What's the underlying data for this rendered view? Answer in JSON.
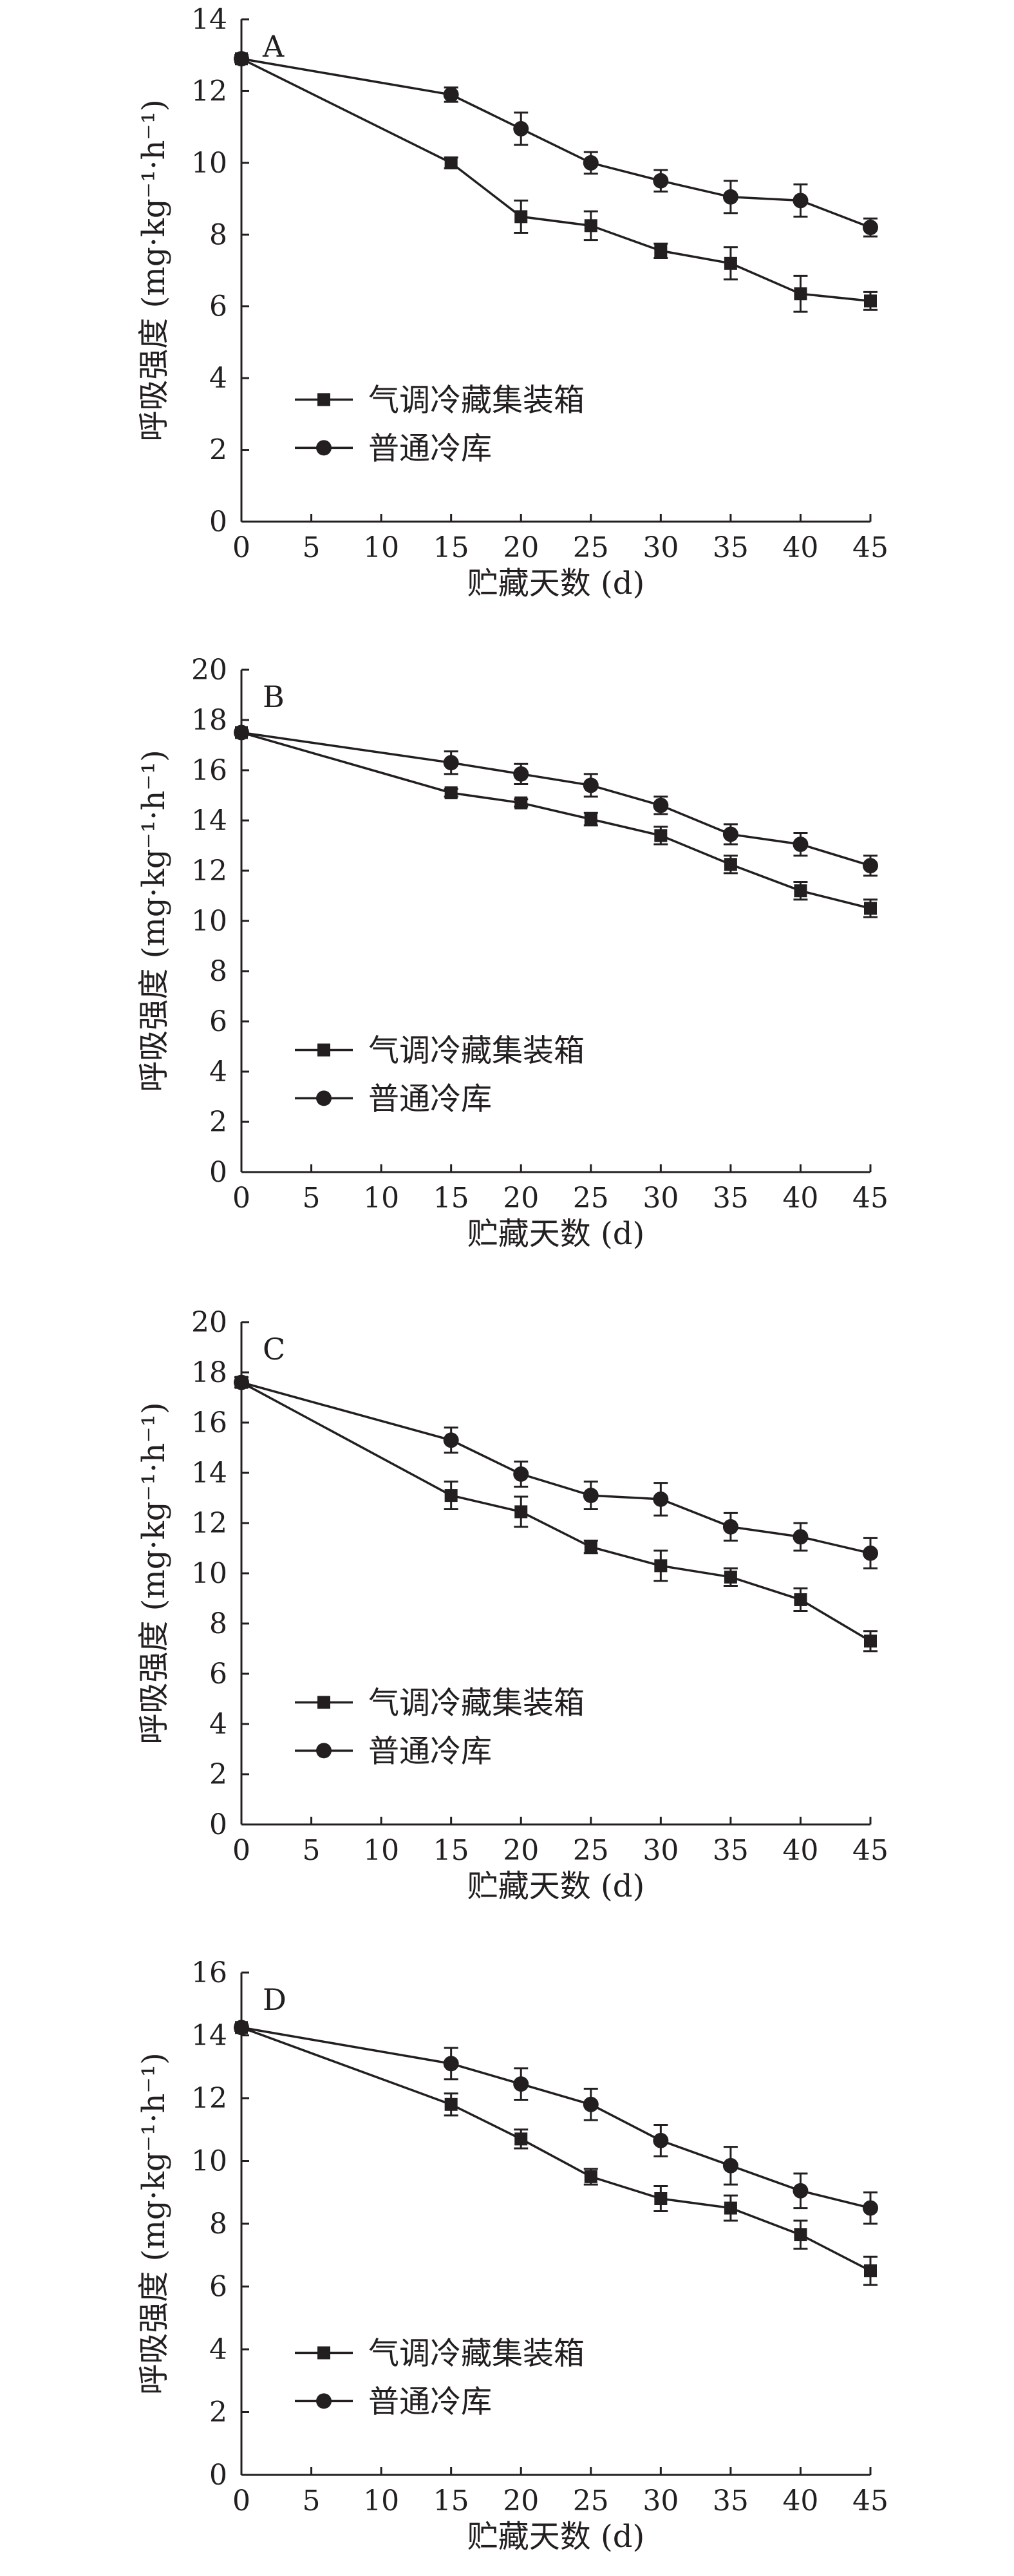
{
  "colors": {
    "ink": "#231f20",
    "background": "#ffffff"
  },
  "legend": {
    "labels": [
      "气调冷藏集装箱",
      "普通冷库"
    ],
    "markers": [
      "square",
      "circle"
    ]
  },
  "chart_data": [
    {
      "panel_label": "A",
      "type": "line",
      "xlabel": "贮藏天数 (d)",
      "ylabel": "呼吸强度 (mg·kg⁻¹·h⁻¹)",
      "x": [
        0,
        15,
        20,
        25,
        30,
        35,
        40,
        45
      ],
      "xticks": [
        "0",
        "5",
        "10",
        "15",
        "20",
        "25",
        "30",
        "35",
        "40",
        "45"
      ],
      "xlim": [
        0,
        45
      ],
      "yticks": [
        "0",
        "2",
        "4",
        "6",
        "8",
        "10",
        "12",
        "14"
      ],
      "ylim": [
        0,
        14
      ],
      "legend_position": "lower-left",
      "grid": false,
      "series": [
        {
          "name": "气调冷藏集装箱",
          "marker": "square",
          "values": [
            12.9,
            10.0,
            8.5,
            8.25,
            7.55,
            7.2,
            6.35,
            6.15
          ],
          "errors": [
            0.1,
            0.15,
            0.45,
            0.4,
            0.2,
            0.45,
            0.5,
            0.25
          ]
        },
        {
          "name": "普通冷库",
          "marker": "circle",
          "values": [
            12.9,
            11.9,
            10.95,
            10.0,
            9.5,
            9.05,
            8.95,
            8.2
          ],
          "errors": [
            0.1,
            0.2,
            0.45,
            0.3,
            0.3,
            0.45,
            0.45,
            0.25
          ]
        }
      ]
    },
    {
      "panel_label": "B",
      "type": "line",
      "xlabel": "贮藏天数 (d)",
      "ylabel": "呼吸强度 (mg·kg⁻¹·h⁻¹)",
      "x": [
        0,
        15,
        20,
        25,
        30,
        35,
        40,
        45
      ],
      "xticks": [
        "0",
        "5",
        "10",
        "15",
        "20",
        "25",
        "30",
        "35",
        "40",
        "45"
      ],
      "xlim": [
        0,
        45
      ],
      "yticks": [
        "0",
        "2",
        "4",
        "6",
        "8",
        "10",
        "12",
        "14",
        "16",
        "18",
        "20"
      ],
      "ylim": [
        0,
        20
      ],
      "legend_position": "lower-left",
      "grid": false,
      "series": [
        {
          "name": "气调冷藏集装箱",
          "marker": "square",
          "values": [
            17.5,
            15.1,
            14.7,
            14.05,
            13.4,
            12.25,
            11.2,
            10.5
          ],
          "errors": [
            0.1,
            0.15,
            0.15,
            0.25,
            0.35,
            0.35,
            0.35,
            0.35
          ]
        },
        {
          "name": "普通冷库",
          "marker": "circle",
          "values": [
            17.5,
            16.3,
            15.85,
            15.4,
            14.6,
            13.45,
            13.05,
            12.2
          ],
          "errors": [
            0.1,
            0.45,
            0.4,
            0.45,
            0.35,
            0.4,
            0.45,
            0.4
          ]
        }
      ]
    },
    {
      "panel_label": "C",
      "type": "line",
      "xlabel": "贮藏天数 (d)",
      "ylabel": "呼吸强度 (mg·kg⁻¹·h⁻¹)",
      "x": [
        0,
        15,
        20,
        25,
        30,
        35,
        40,
        45
      ],
      "xticks": [
        "0",
        "5",
        "10",
        "15",
        "20",
        "25",
        "30",
        "35",
        "40",
        "45"
      ],
      "xlim": [
        0,
        45
      ],
      "yticks": [
        "0",
        "2",
        "4",
        "6",
        "8",
        "10",
        "12",
        "14",
        "16",
        "18",
        "20"
      ],
      "ylim": [
        0,
        20
      ],
      "legend_position": "lower-left",
      "grid": false,
      "series": [
        {
          "name": "气调冷藏集装箱",
          "marker": "square",
          "values": [
            17.6,
            13.1,
            12.45,
            11.05,
            10.3,
            9.85,
            8.95,
            7.3
          ],
          "errors": [
            0.2,
            0.55,
            0.6,
            0.25,
            0.6,
            0.35,
            0.45,
            0.4
          ]
        },
        {
          "name": "普通冷库",
          "marker": "circle",
          "values": [
            17.6,
            15.3,
            13.95,
            13.1,
            12.95,
            11.85,
            11.45,
            10.8
          ],
          "errors": [
            0.2,
            0.5,
            0.5,
            0.55,
            0.65,
            0.55,
            0.55,
            0.6
          ]
        }
      ]
    },
    {
      "panel_label": "D",
      "type": "line",
      "xlabel": "贮藏天数 (d)",
      "ylabel": "呼吸强度 (mg·kg⁻¹·h⁻¹)",
      "x": [
        0,
        15,
        20,
        25,
        30,
        35,
        40,
        45
      ],
      "xticks": [
        "0",
        "5",
        "10",
        "15",
        "20",
        "25",
        "30",
        "35",
        "40",
        "45"
      ],
      "xlim": [
        0,
        45
      ],
      "yticks": [
        "0",
        "2",
        "4",
        "6",
        "8",
        "10",
        "12",
        "14",
        "16"
      ],
      "ylim": [
        0,
        16
      ],
      "legend_position": "lower-left",
      "grid": false,
      "series": [
        {
          "name": "气调冷藏集装箱",
          "marker": "square",
          "values": [
            14.25,
            11.8,
            10.7,
            9.5,
            8.8,
            8.5,
            7.65,
            6.5
          ],
          "errors": [
            0.1,
            0.35,
            0.3,
            0.25,
            0.4,
            0.4,
            0.45,
            0.45
          ]
        },
        {
          "name": "普通冷库",
          "marker": "circle",
          "values": [
            14.25,
            13.1,
            12.45,
            11.8,
            10.65,
            9.85,
            9.05,
            8.5
          ],
          "errors": [
            0.1,
            0.5,
            0.5,
            0.5,
            0.5,
            0.6,
            0.55,
            0.5
          ]
        }
      ]
    }
  ]
}
